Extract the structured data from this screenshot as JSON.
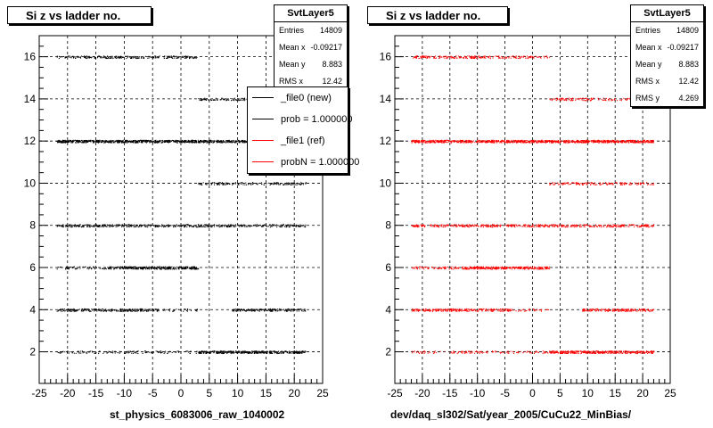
{
  "chart_data": [
    {
      "type": "scatter",
      "title": "Si z vs ladder no.",
      "xlabel": "st_physics_6083006_raw_1040002",
      "ylabel": "",
      "xlim": [
        -25,
        25
      ],
      "ylim": [
        0.5,
        17
      ],
      "xticks": [
        -25,
        -20,
        -15,
        -10,
        -5,
        0,
        5,
        10,
        15,
        20,
        25
      ],
      "yticks": [
        2,
        4,
        6,
        8,
        10,
        12,
        14,
        16
      ],
      "grid": true,
      "marker_color": "#000000",
      "series": [
        {
          "name": "_file0 (new)",
          "bands": [
            {
              "y": 2,
              "segments": [
                [
                  -22,
                  22,
                  0.7
                ],
                [
                  3,
                  22,
                  2.0
                ]
              ]
            },
            {
              "y": 4,
              "segments": [
                [
                  -22,
                  -4,
                  1.8
                ],
                [
                  -4,
                  3,
                  0.6
                ],
                [
                  9,
                  22,
                  1.8
                ]
              ]
            },
            {
              "y": 6,
              "segments": [
                [
                  -22,
                  3,
                  1.0
                ],
                [
                  -13,
                  3,
                  1.6
                ]
              ]
            },
            {
              "y": 8,
              "segments": [
                [
                  -22,
                  22,
                  1.5
                ]
              ]
            },
            {
              "y": 10,
              "segments": [
                [
                  3,
                  22,
                  1.0
                ]
              ]
            },
            {
              "y": 12,
              "segments": [
                [
                  -22,
                  22,
                  3.0
                ]
              ]
            },
            {
              "y": 14,
              "segments": [
                [
                  3,
                  22,
                  1.0
                ]
              ]
            },
            {
              "y": 16,
              "segments": [
                [
                  -22,
                  3,
                  1.2
                ]
              ]
            }
          ]
        }
      ],
      "stats": {
        "name": "SvtLayer5",
        "entries": "14809",
        "mean_x": "-0.09217",
        "mean_y": "8.883",
        "rms_x": "12.42"
      },
      "legend": [
        {
          "label": "_file0 (new)",
          "color": "#000000"
        },
        {
          "label": "prob = 1.000000",
          "color": "#000000"
        },
        {
          "label": "_file1 (ref)",
          "color": "#ff0000"
        },
        {
          "label": "probN = 1.000000",
          "color": "#ff0000"
        }
      ]
    },
    {
      "type": "scatter",
      "title": "Si z vs ladder no.",
      "xlabel": "dev/daq_sl302/Sat/year_2005/CuCu22_MinBias/",
      "ylabel": "",
      "xlim": [
        -25,
        25
      ],
      "ylim": [
        0.5,
        17
      ],
      "xticks": [
        -25,
        -20,
        -15,
        -10,
        -5,
        0,
        5,
        10,
        15,
        20,
        25
      ],
      "yticks": [
        2,
        4,
        6,
        8,
        10,
        12,
        14,
        16
      ],
      "grid": true,
      "marker_color": "#ff0000",
      "series": [
        {
          "name": "_file1 (ref)",
          "bands": [
            {
              "y": 2,
              "segments": [
                [
                  -22,
                  22,
                  0.7
                ],
                [
                  3,
                  22,
                  2.0
                ]
              ]
            },
            {
              "y": 4,
              "segments": [
                [
                  -22,
                  -4,
                  1.8
                ],
                [
                  -4,
                  3,
                  0.6
                ],
                [
                  9,
                  22,
                  1.8
                ]
              ]
            },
            {
              "y": 6,
              "segments": [
                [
                  -22,
                  3,
                  1.0
                ],
                [
                  -13,
                  3,
                  1.6
                ]
              ]
            },
            {
              "y": 8,
              "segments": [
                [
                  -22,
                  22,
                  1.5
                ]
              ]
            },
            {
              "y": 10,
              "segments": [
                [
                  3,
                  22,
                  1.0
                ]
              ]
            },
            {
              "y": 12,
              "segments": [
                [
                  -22,
                  22,
                  3.0
                ]
              ]
            },
            {
              "y": 14,
              "segments": [
                [
                  3,
                  22,
                  1.0
                ]
              ]
            },
            {
              "y": 16,
              "segments": [
                [
                  -22,
                  3,
                  1.2
                ]
              ]
            }
          ]
        }
      ],
      "stats": {
        "name": "SvtLayer5",
        "entries": "14809",
        "mean_x": "-0.09217",
        "mean_y": "8.883",
        "rms_x": "12.42",
        "rms_y": "4.269"
      }
    }
  ]
}
